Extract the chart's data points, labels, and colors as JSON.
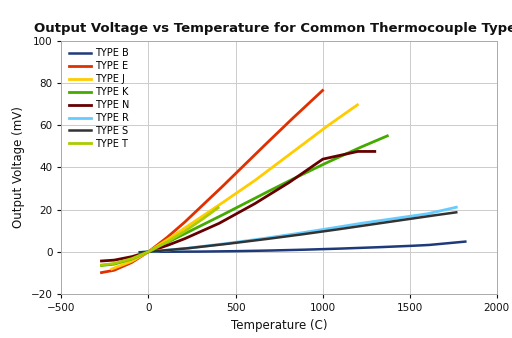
{
  "title": "Output Voltage vs Temperature for Common Thermocouple Types",
  "xlabel": "Temperature (C)",
  "ylabel": "Output Voltage (mV)",
  "xlim": [
    -500,
    2000
  ],
  "ylim": [
    -20,
    100
  ],
  "xticks": [
    -500,
    0,
    500,
    1000,
    1500,
    2000
  ],
  "yticks": [
    -20,
    0,
    20,
    40,
    60,
    80,
    100
  ],
  "background_color": "#ffffff",
  "grid_color": "#cccccc",
  "series": [
    {
      "label": "TYPE B",
      "color": "#1f3a7a",
      "lw": 1.8,
      "temps": [
        0,
        200,
        400,
        600,
        800,
        1000,
        1200,
        1400,
        1600,
        1820
      ],
      "mvs": [
        0.0,
        0.033,
        0.178,
        0.431,
        0.787,
        1.242,
        1.792,
        2.431,
        3.154,
        4.833
      ]
    },
    {
      "label": "TYPE E",
      "color": "#e03000",
      "lw": 2.0,
      "temps": [
        -270,
        -200,
        -100,
        0,
        100,
        200,
        400,
        600,
        800,
        1000
      ],
      "mvs": [
        -9.835,
        -8.825,
        -5.237,
        0.0,
        6.319,
        13.421,
        28.946,
        45.093,
        61.017,
        76.373
      ]
    },
    {
      "label": "TYPE J",
      "color": "#ffcc00",
      "lw": 2.0,
      "temps": [
        -210,
        -100,
        0,
        100,
        200,
        400,
        600,
        800,
        1000,
        1200
      ],
      "mvs": [
        -8.095,
        -4.633,
        0.0,
        5.269,
        10.779,
        21.848,
        33.096,
        45.494,
        57.953,
        69.553
      ]
    },
    {
      "label": "TYPE K",
      "color": "#44aa00",
      "lw": 2.0,
      "temps": [
        -270,
        -200,
        -100,
        0,
        100,
        200,
        400,
        600,
        800,
        1000,
        1200,
        1372
      ],
      "mvs": [
        -6.458,
        -5.891,
        -3.554,
        0.0,
        4.096,
        8.138,
        16.397,
        24.906,
        33.275,
        41.276,
        48.838,
        54.874
      ]
    },
    {
      "label": "TYPE N",
      "color": "#660000",
      "lw": 2.0,
      "temps": [
        -270,
        -200,
        -100,
        0,
        100,
        200,
        400,
        600,
        800,
        1000,
        1200,
        1300
      ],
      "mvs": [
        -4.345,
        -3.99,
        -2.407,
        0.0,
        2.774,
        5.913,
        13.228,
        22.251,
        32.371,
        43.846,
        47.513,
        47.513
      ]
    },
    {
      "label": "TYPE R",
      "color": "#66ccff",
      "lw": 2.0,
      "temps": [
        -50,
        0,
        200,
        400,
        600,
        800,
        1000,
        1200,
        1400,
        1600,
        1768
      ],
      "mvs": [
        -0.226,
        0.0,
        1.469,
        3.408,
        5.583,
        7.95,
        10.506,
        13.228,
        15.582,
        17.947,
        21.101
      ]
    },
    {
      "label": "TYPE S",
      "color": "#333333",
      "lw": 1.8,
      "temps": [
        -50,
        0,
        200,
        400,
        600,
        800,
        1000,
        1200,
        1400,
        1600,
        1768
      ],
      "mvs": [
        -0.236,
        0.0,
        1.441,
        3.251,
        5.239,
        7.345,
        9.587,
        11.951,
        14.373,
        16.777,
        18.693
      ]
    },
    {
      "label": "TYPE T",
      "color": "#aacc00",
      "lw": 2.0,
      "temps": [
        -270,
        -200,
        -100,
        0,
        100,
        200,
        300,
        400
      ],
      "mvs": [
        -6.258,
        -5.603,
        -3.379,
        0.0,
        4.279,
        9.288,
        14.862,
        20.872
      ]
    }
  ]
}
